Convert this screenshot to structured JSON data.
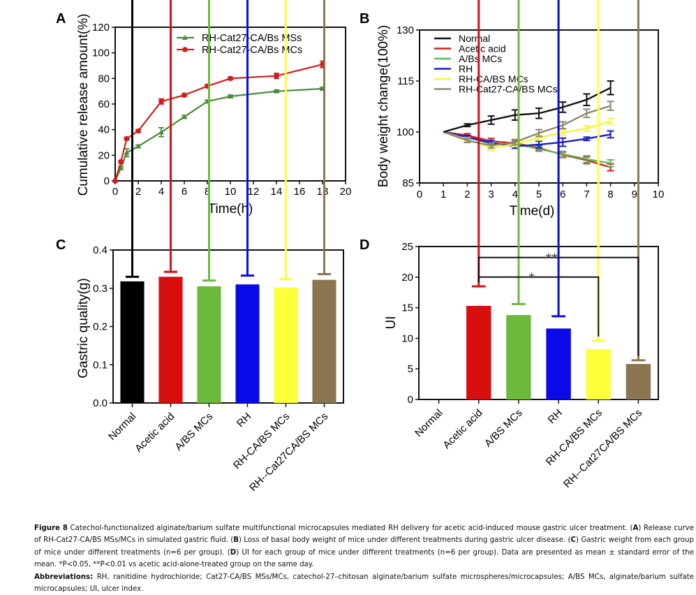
{
  "chart_data": [
    {
      "id": "A",
      "panel_label": "A",
      "type": "line",
      "xlabel": "Time(h)",
      "ylabel": "Cumulative release amount(%)",
      "xlim": [
        0,
        20
      ],
      "ylim": [
        0,
        120
      ],
      "xticks": [
        0,
        2,
        4,
        6,
        8,
        10,
        12,
        14,
        16,
        18,
        20
      ],
      "yticks": [
        0,
        20,
        40,
        60,
        80,
        100,
        120
      ],
      "legend_position": "top-right",
      "series": [
        {
          "name": "RH-Cat27-CA/Bs MSs",
          "color": "#4a8a3c",
          "marker": "triangle",
          "x": [
            0,
            0.5,
            1,
            2,
            4,
            6,
            8,
            10,
            14,
            18
          ],
          "y": [
            0,
            10,
            22,
            27,
            38,
            50,
            62,
            66,
            70,
            72
          ],
          "err": [
            0,
            1,
            3,
            1,
            3.5,
            1,
            1,
            1,
            1,
            1
          ]
        },
        {
          "name": "RH-Cat27-CA/Bs MCs",
          "color": "#d41c1c",
          "marker": "circle",
          "x": [
            0,
            0.5,
            1,
            2,
            4,
            6,
            8,
            10,
            14,
            18
          ],
          "y": [
            0,
            15,
            33,
            39,
            62,
            67,
            74,
            80,
            82,
            91
          ],
          "err": [
            0,
            1,
            1,
            1,
            2,
            1,
            1,
            1,
            2,
            2.5
          ]
        }
      ]
    },
    {
      "id": "B",
      "panel_label": "B",
      "type": "line",
      "xlabel": "Time(d)",
      "ylabel": "Body weight change(100%)",
      "xlim": [
        0,
        10
      ],
      "ylim": [
        85,
        130
      ],
      "xticks": [
        0,
        1,
        2,
        3,
        4,
        5,
        6,
        7,
        8,
        9,
        10
      ],
      "yticks": [
        85,
        100,
        115,
        130
      ],
      "legend_position": "top-left",
      "x": [
        1,
        2,
        3,
        4,
        5,
        6,
        7,
        8
      ],
      "series": [
        {
          "name": "Normal",
          "color": "#111111",
          "y": [
            100,
            102,
            103.5,
            105,
            105.5,
            107.3,
            109.5,
            113
          ],
          "err": [
            0,
            0.4,
            1.2,
            1.5,
            1.5,
            1.5,
            1.7,
            2
          ]
        },
        {
          "name": "Acetic acid",
          "color": "#d41c1c",
          "y": [
            100,
            99,
            97.3,
            96.7,
            95.3,
            93.3,
            91.7,
            89.6
          ],
          "err": [
            0,
            0.5,
            0.8,
            0.7,
            0.7,
            0.8,
            1,
            1
          ]
        },
        {
          "name": "A/Bs MCs",
          "color": "#5cb85c",
          "y": [
            100,
            98.5,
            96.5,
            96.5,
            95,
            93.5,
            92,
            90.8
          ],
          "err": [
            0,
            0.5,
            0.7,
            0.7,
            0.7,
            0.8,
            1,
            1
          ]
        },
        {
          "name": "RH",
          "color": "#1a1ad4",
          "y": [
            100,
            98.5,
            96.8,
            95.8,
            96.3,
            97,
            98,
            99.3
          ],
          "err": [
            0,
            0.5,
            0.7,
            0.6,
            1,
            1.2,
            0.5,
            1
          ]
        },
        {
          "name": "RH-CA/BS MCs",
          "color": "#f5f53a",
          "y": [
            100,
            97.8,
            95.3,
            96.4,
            98.3,
            99.8,
            101,
            103.2
          ],
          "err": [
            0,
            0.5,
            0.6,
            0.6,
            0.7,
            0.8,
            0.8,
            0.8
          ]
        },
        {
          "name": "RH-Cat27-CA/BS MCs",
          "color": "#8c8670",
          "y": [
            100,
            97.5,
            96,
            97,
            99.7,
            102,
            105.5,
            107.7
          ],
          "err": [
            0,
            0.6,
            0.7,
            0.8,
            1,
            1,
            1.2,
            1.3
          ]
        }
      ]
    },
    {
      "id": "C",
      "panel_label": "C",
      "type": "bar",
      "xlabel": "",
      "ylabel": "Gastric quality(g)",
      "ylim": [
        0,
        0.4
      ],
      "yticks": [
        "0.0",
        "0.1",
        "0.2",
        "0.3",
        "0.4"
      ],
      "categories": [
        "Normal",
        "Acetic acid",
        "A/BS MCs",
        "RH",
        "RH-CA/BS MCs",
        "RH--Cat27CA/BS MCs"
      ],
      "values": [
        0.318,
        0.33,
        0.305,
        0.31,
        0.302,
        0.322
      ],
      "err": [
        0.012,
        0.013,
        0.015,
        0.023,
        0.022,
        0.015
      ],
      "colors": [
        "#000000",
        "#d90f0f",
        "#6cba3c",
        "#0a0ae8",
        "#ffff3a",
        "#8c7652"
      ]
    },
    {
      "id": "D",
      "panel_label": "D",
      "type": "bar",
      "xlabel": "",
      "ylabel": "UI",
      "ylim": [
        0,
        25
      ],
      "yticks": [
        "0",
        "5",
        "10",
        "15",
        "20",
        "25"
      ],
      "categories": [
        "Normal",
        "Acetic acid",
        "A/BS MCs",
        "RH",
        "RH-CA/BS MCs",
        "RH--Cat27CA/BS MCs"
      ],
      "values": [
        0,
        15.3,
        13.8,
        11.6,
        8.2,
        5.8
      ],
      "err": [
        0,
        3.2,
        1.8,
        2.0,
        1.4,
        0.6
      ],
      "colors": [
        "#000000",
        "#d90f0f",
        "#6cba3c",
        "#0a0ae8",
        "#ffff3a",
        "#8c7652"
      ],
      "annotations": [
        {
          "from": "Acetic acid",
          "to": "RH--Cat27CA/BS MCs",
          "label": "**",
          "level": 23.2
        },
        {
          "from": "Acetic acid",
          "to": "RH-CA/BS MCs",
          "label": "*",
          "level": 20
        }
      ]
    }
  ],
  "caption": {
    "figure_label": "Figure 8",
    "title": "Catechol-functionalized alginate/barium sulfate multifunctional microcapsules mediated RH delivery for acetic acid-induced mouse gastric ulcer treatment.",
    "parts": [
      {
        "letter": "A",
        "text": "Release curve of RH-Cat27-CA/BS MSs/MCs in simulated gastric fluid."
      },
      {
        "letter": "B",
        "text": "Loss of basal body weight of mice under different treatments during gastric ulcer disease."
      },
      {
        "letter": "C",
        "text": "Gastric weight from each group of mice under different treatments (n=6 per group)."
      },
      {
        "letter": "D",
        "text": "UI for each group of mice under different treatments (n=6 per group)."
      }
    ],
    "stats": "Data are presented as mean ± standard error of the mean. *P<0.05, **P<0.01 vs acetic acid-alone-treated group on the same day.",
    "abbreviations_label": "Abbreviations:",
    "abbreviations": "RH, ranitidine hydrochloride; Cat27-CA/BS MSs/MCs, catechol-27–chitosan alginate/barium sulfate microspheres/microcapsules; A/BS MCs, alginate/barium sulfate microcapsules; UI, ulcer index."
  }
}
